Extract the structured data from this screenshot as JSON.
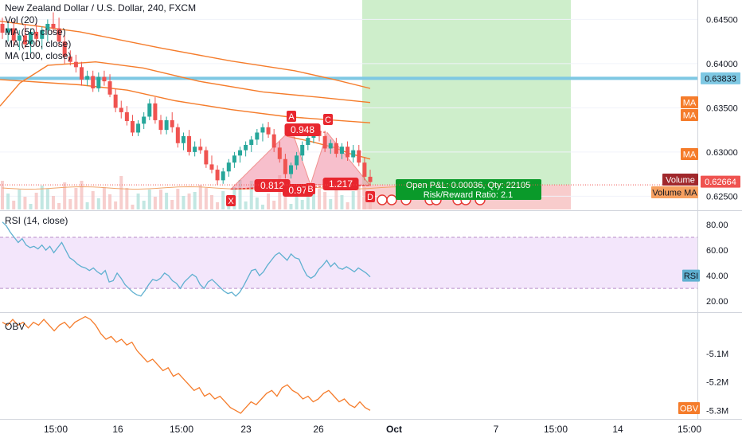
{
  "chart_data": {
    "type": "candlestick",
    "title": "New Zealand Dollar / U.S. Dollar, 240, FXCM",
    "price_pane": {
      "legend": [
        "Vol (20)",
        "MA (50, close)",
        "MA (200, close)",
        "MA (100, close)"
      ],
      "y_ticks": [
        "0.64500",
        "0.64000",
        "0.63500",
        "0.63000",
        "0.62500"
      ],
      "y_tick_values": [
        0.645,
        0.64,
        0.635,
        0.63,
        0.625
      ],
      "ylim": [
        0.6235,
        0.6472
      ],
      "price_labels": {
        "horizontal_line": "0.63833",
        "horizontal_line_value": 0.63833,
        "last_price": "0.62664",
        "last_price_value": 0.62664,
        "ma_tags": [
          "MA",
          "MA",
          "MA"
        ],
        "volume_tag": "Volume",
        "volume_ma_tag": "Volume MA"
      },
      "candles": [
        {
          "o": 0.6445,
          "h": 0.6452,
          "l": 0.6428,
          "c": 0.6435
        },
        {
          "o": 0.6435,
          "h": 0.6446,
          "l": 0.6425,
          "c": 0.644
        },
        {
          "o": 0.644,
          "h": 0.6449,
          "l": 0.642,
          "c": 0.6426
        },
        {
          "o": 0.6426,
          "h": 0.6438,
          "l": 0.6415,
          "c": 0.6432
        },
        {
          "o": 0.6432,
          "h": 0.6445,
          "l": 0.6418,
          "c": 0.6422
        },
        {
          "o": 0.6422,
          "h": 0.644,
          "l": 0.6412,
          "c": 0.6436
        },
        {
          "o": 0.6436,
          "h": 0.6446,
          "l": 0.642,
          "c": 0.6428
        },
        {
          "o": 0.6428,
          "h": 0.6442,
          "l": 0.6416,
          "c": 0.6438
        },
        {
          "o": 0.6438,
          "h": 0.645,
          "l": 0.6425,
          "c": 0.6445
        },
        {
          "o": 0.6445,
          "h": 0.6458,
          "l": 0.6435,
          "c": 0.644
        },
        {
          "o": 0.644,
          "h": 0.6452,
          "l": 0.642,
          "c": 0.6425
        },
        {
          "o": 0.6425,
          "h": 0.6432,
          "l": 0.64,
          "c": 0.6408
        },
        {
          "o": 0.6408,
          "h": 0.6415,
          "l": 0.6398,
          "c": 0.6402
        },
        {
          "o": 0.6402,
          "h": 0.641,
          "l": 0.639,
          "c": 0.6396
        },
        {
          "o": 0.6396,
          "h": 0.6402,
          "l": 0.6375,
          "c": 0.6382
        },
        {
          "o": 0.6382,
          "h": 0.6392,
          "l": 0.6375,
          "c": 0.6386
        },
        {
          "o": 0.6386,
          "h": 0.6392,
          "l": 0.6368,
          "c": 0.6372
        },
        {
          "o": 0.6372,
          "h": 0.639,
          "l": 0.6368,
          "c": 0.6385
        },
        {
          "o": 0.6385,
          "h": 0.6392,
          "l": 0.6375,
          "c": 0.638
        },
        {
          "o": 0.638,
          "h": 0.6388,
          "l": 0.6362,
          "c": 0.6365
        },
        {
          "o": 0.6365,
          "h": 0.6372,
          "l": 0.6345,
          "c": 0.635
        },
        {
          "o": 0.635,
          "h": 0.6358,
          "l": 0.6338,
          "c": 0.6345
        },
        {
          "o": 0.6345,
          "h": 0.6352,
          "l": 0.633,
          "c": 0.6335
        },
        {
          "o": 0.6335,
          "h": 0.6342,
          "l": 0.6318,
          "c": 0.6322
        },
        {
          "o": 0.6322,
          "h": 0.6336,
          "l": 0.6318,
          "c": 0.6332
        },
        {
          "o": 0.6332,
          "h": 0.6345,
          "l": 0.6326,
          "c": 0.634
        },
        {
          "o": 0.634,
          "h": 0.636,
          "l": 0.6336,
          "c": 0.6355
        },
        {
          "o": 0.6355,
          "h": 0.6362,
          "l": 0.6332,
          "c": 0.6336
        },
        {
          "o": 0.6336,
          "h": 0.6342,
          "l": 0.632,
          "c": 0.6325
        },
        {
          "o": 0.6325,
          "h": 0.634,
          "l": 0.632,
          "c": 0.6336
        },
        {
          "o": 0.6336,
          "h": 0.6345,
          "l": 0.6322,
          "c": 0.6328
        },
        {
          "o": 0.6328,
          "h": 0.6332,
          "l": 0.6305,
          "c": 0.631
        },
        {
          "o": 0.631,
          "h": 0.6322,
          "l": 0.6302,
          "c": 0.6318
        },
        {
          "o": 0.6318,
          "h": 0.6325,
          "l": 0.6296,
          "c": 0.63
        },
        {
          "o": 0.63,
          "h": 0.6312,
          "l": 0.6295,
          "c": 0.6306
        },
        {
          "o": 0.6306,
          "h": 0.6315,
          "l": 0.6298,
          "c": 0.6302
        },
        {
          "o": 0.6302,
          "h": 0.6306,
          "l": 0.6282,
          "c": 0.6286
        },
        {
          "o": 0.6286,
          "h": 0.6296,
          "l": 0.6276,
          "c": 0.628
        },
        {
          "o": 0.628,
          "h": 0.6285,
          "l": 0.6263,
          "c": 0.6268
        },
        {
          "o": 0.6268,
          "h": 0.6282,
          "l": 0.6264,
          "c": 0.6278
        },
        {
          "o": 0.6278,
          "h": 0.6292,
          "l": 0.6272,
          "c": 0.6288
        },
        {
          "o": 0.6288,
          "h": 0.63,
          "l": 0.6282,
          "c": 0.6296
        },
        {
          "o": 0.6296,
          "h": 0.6306,
          "l": 0.6288,
          "c": 0.6302
        },
        {
          "o": 0.6302,
          "h": 0.6312,
          "l": 0.6295,
          "c": 0.6308
        },
        {
          "o": 0.6308,
          "h": 0.6318,
          "l": 0.63,
          "c": 0.6314
        },
        {
          "o": 0.6314,
          "h": 0.6326,
          "l": 0.6308,
          "c": 0.6322
        },
        {
          "o": 0.6322,
          "h": 0.6332,
          "l": 0.6312,
          "c": 0.6328
        },
        {
          "o": 0.6328,
          "h": 0.6334,
          "l": 0.6316,
          "c": 0.632
        },
        {
          "o": 0.632,
          "h": 0.6326,
          "l": 0.63,
          "c": 0.6305
        },
        {
          "o": 0.6305,
          "h": 0.6312,
          "l": 0.6288,
          "c": 0.6292
        },
        {
          "o": 0.6292,
          "h": 0.6298,
          "l": 0.627,
          "c": 0.6275
        },
        {
          "o": 0.6275,
          "h": 0.6288,
          "l": 0.627,
          "c": 0.6285
        },
        {
          "o": 0.6285,
          "h": 0.63,
          "l": 0.628,
          "c": 0.6296
        },
        {
          "o": 0.6296,
          "h": 0.6312,
          "l": 0.629,
          "c": 0.6308
        },
        {
          "o": 0.6308,
          "h": 0.632,
          "l": 0.6302,
          "c": 0.6316
        },
        {
          "o": 0.6316,
          "h": 0.6328,
          "l": 0.631,
          "c": 0.6324
        },
        {
          "o": 0.6324,
          "h": 0.633,
          "l": 0.6312,
          "c": 0.6318
        },
        {
          "o": 0.6318,
          "h": 0.6324,
          "l": 0.63,
          "c": 0.6304
        },
        {
          "o": 0.6304,
          "h": 0.6314,
          "l": 0.6298,
          "c": 0.631
        },
        {
          "o": 0.631,
          "h": 0.6316,
          "l": 0.6294,
          "c": 0.6298
        },
        {
          "o": 0.6298,
          "h": 0.631,
          "l": 0.6292,
          "c": 0.6306
        },
        {
          "o": 0.6306,
          "h": 0.6312,
          "l": 0.629,
          "c": 0.6294
        },
        {
          "o": 0.6294,
          "h": 0.6308,
          "l": 0.6288,
          "c": 0.6302
        },
        {
          "o": 0.6302,
          "h": 0.6308,
          "l": 0.6284,
          "c": 0.6288
        },
        {
          "o": 0.6288,
          "h": 0.6294,
          "l": 0.6268,
          "c": 0.6272
        },
        {
          "o": 0.6272,
          "h": 0.628,
          "l": 0.6262,
          "c": 0.6266
        }
      ],
      "ma_series": [
        {
          "name": "MA (50, close)",
          "color": "#f57c2b",
          "values": [
            [
              0,
              0.6352
            ],
            [
              25,
              0.6378
            ],
            [
              60,
              0.6398
            ],
            [
              120,
              0.6402
            ],
            [
              180,
              0.6395
            ],
            [
              250,
              0.638
            ],
            [
              330,
              0.6368
            ],
            [
              400,
              0.6362
            ],
            [
              465,
              0.6356
            ]
          ]
        },
        {
          "name": "MA (200, close)",
          "color": "#f57c2b",
          "values": [
            [
              0,
              0.6382
            ],
            [
              100,
              0.6376
            ],
            [
              160,
              0.637
            ],
            [
              220,
              0.6358
            ],
            [
              290,
              0.6348
            ],
            [
              360,
              0.634
            ],
            [
              420,
              0.6336
            ],
            [
              465,
              0.6333
            ]
          ]
        },
        {
          "name": "MA (100, close)",
          "color": "#f57c2b",
          "values": [
            [
              0,
              0.6448
            ],
            [
              100,
              0.6436
            ],
            [
              200,
              0.6418
            ],
            [
              290,
              0.6403
            ],
            [
              370,
              0.6392
            ],
            [
              420,
              0.6382
            ],
            [
              465,
              0.6372
            ]
          ]
        },
        {
          "name": "short MA",
          "color": "#f57c2b",
          "values": [
            [
              360,
              0.6318
            ],
            [
              390,
              0.6312
            ],
            [
              420,
              0.6305
            ],
            [
              440,
              0.6298
            ],
            [
              465,
              0.6292
            ]
          ]
        }
      ],
      "harmonic_pattern": {
        "points": {
          "X": 0.6258,
          "A": 0.6326,
          "B": 0.6263,
          "C": 0.6322,
          "D": 0.6262
        },
        "point_labels": [
          "X",
          "A",
          "B",
          "C",
          "D"
        ],
        "ratios": [
          "0.948",
          "0.812",
          "0.97",
          "1.217"
        ]
      },
      "position": {
        "pnl_label": "Open P&L: 0.00036, Qty: 22105",
        "rr_label": "Risk/Reward Ratio: 2.1",
        "target": 0.6472,
        "entry": 0.62628,
        "stop": 0.62525
      }
    },
    "rsi_pane": {
      "legend": "RSI (14, close)",
      "y_ticks": [
        "80.00",
        "60.00",
        "40.00",
        "20.00"
      ],
      "y_tick_values": [
        80,
        60,
        40,
        20
      ],
      "ylim": [
        12,
        90
      ],
      "band": [
        30,
        70
      ],
      "tag": "RSI",
      "color": "#5fb0d0",
      "values": [
        82,
        79,
        74,
        70,
        66,
        69,
        64,
        62,
        63,
        61,
        64,
        60,
        63,
        58,
        62,
        66,
        60,
        54,
        52,
        49,
        47,
        46,
        44,
        46,
        43,
        41,
        44,
        35,
        36,
        42,
        38,
        33,
        30,
        27,
        25,
        24,
        28,
        33,
        37,
        36,
        38,
        42,
        40,
        36,
        34,
        30,
        35,
        38,
        41,
        39,
        33,
        30,
        35,
        37,
        34,
        31,
        28,
        26,
        27,
        24,
        27,
        32,
        38,
        44,
        45,
        40,
        43,
        48,
        52,
        56,
        58,
        55,
        52,
        57,
        54,
        53,
        46,
        40,
        38,
        40,
        45,
        48,
        52,
        47,
        50,
        46,
        45,
        47,
        45,
        43,
        46,
        44,
        42,
        39
      ]
    },
    "obv_pane": {
      "legend": "OBV",
      "y_ticks": [
        "-5.1M",
        "-5.2M",
        "-5.3M"
      ],
      "y_tick_values": [
        -5.1,
        -5.2,
        -5.3
      ],
      "ylim": [
        -5.33,
        -4.96
      ],
      "tag": "OBV",
      "color": "#f57c2b",
      "values": [
        -4.99,
        -5.0,
        -4.98,
        -5.0,
        -4.99,
        -5.01,
        -4.99,
        -5.0,
        -4.98,
        -5.0,
        -5.02,
        -5.0,
        -4.99,
        -5.01,
        -4.99,
        -4.98,
        -4.97,
        -4.98,
        -5.0,
        -5.03,
        -5.05,
        -5.04,
        -5.06,
        -5.05,
        -5.07,
        -5.06,
        -5.09,
        -5.11,
        -5.13,
        -5.12,
        -5.14,
        -5.16,
        -5.15,
        -5.18,
        -5.17,
        -5.19,
        -5.21,
        -5.23,
        -5.22,
        -5.25,
        -5.24,
        -5.26,
        -5.25,
        -5.27,
        -5.29,
        -5.3,
        -5.31,
        -5.29,
        -5.27,
        -5.28,
        -5.26,
        -5.24,
        -5.23,
        -5.25,
        -5.22,
        -5.21,
        -5.23,
        -5.24,
        -5.26,
        -5.25,
        -5.27,
        -5.26,
        -5.24,
        -5.23,
        -5.25,
        -5.27,
        -5.26,
        -5.28,
        -5.29,
        -5.27,
        -5.29,
        -5.3
      ]
    },
    "x_axis": {
      "ticks": [
        "15:00",
        "16",
        "15:00",
        "23",
        "26",
        "Oct",
        "7",
        "15:00",
        "14",
        "15:00"
      ]
    },
    "colors": {
      "up": "#26a69a",
      "down": "#ef5350",
      "ma": "#f57c2b",
      "hline": "#7ec8e3",
      "profit_zone": "#c9ecc5",
      "pattern_fill": "#f28ba3",
      "pattern_line": "#e53935",
      "rsi_band": "#f3e6fb",
      "position_box": "#0a9a2a"
    }
  }
}
